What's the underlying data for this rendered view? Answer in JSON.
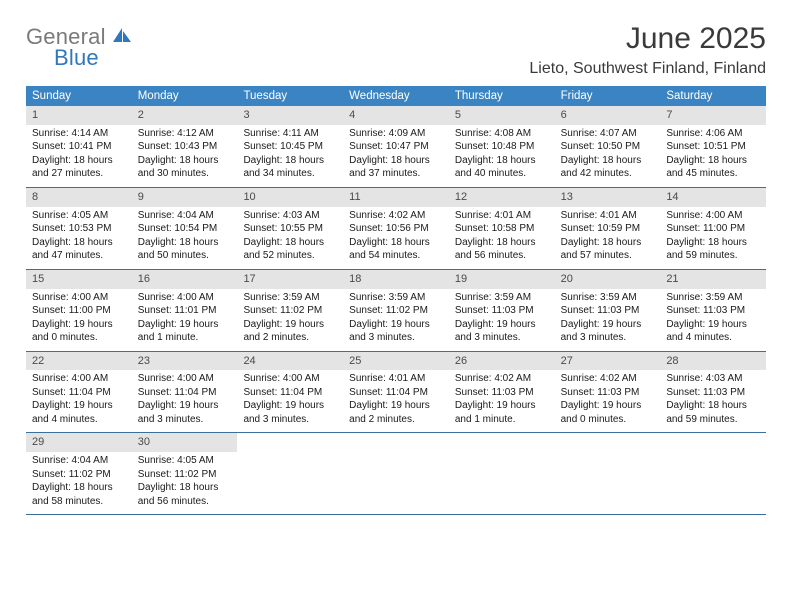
{
  "logo": {
    "text_general": "General",
    "text_blue": "Blue"
  },
  "title": "June 2025",
  "location": "Lieto, Southwest Finland, Finland",
  "colors": {
    "header_bg": "#3b84c4",
    "header_text": "#ffffff",
    "daynum_bg": "#e4e4e4",
    "daynum_text": "#4a4a4a",
    "body_text": "#1a1a1a",
    "rule": "#3b6f9e",
    "logo_gray": "#7a7a7a",
    "logo_blue": "#2f78bd"
  },
  "weekdays": [
    "Sunday",
    "Monday",
    "Tuesday",
    "Wednesday",
    "Thursday",
    "Friday",
    "Saturday"
  ],
  "weeks": [
    [
      {
        "n": "1",
        "sunrise": "Sunrise: 4:14 AM",
        "sunset": "Sunset: 10:41 PM",
        "daylight": "Daylight: 18 hours and 27 minutes."
      },
      {
        "n": "2",
        "sunrise": "Sunrise: 4:12 AM",
        "sunset": "Sunset: 10:43 PM",
        "daylight": "Daylight: 18 hours and 30 minutes."
      },
      {
        "n": "3",
        "sunrise": "Sunrise: 4:11 AM",
        "sunset": "Sunset: 10:45 PM",
        "daylight": "Daylight: 18 hours and 34 minutes."
      },
      {
        "n": "4",
        "sunrise": "Sunrise: 4:09 AM",
        "sunset": "Sunset: 10:47 PM",
        "daylight": "Daylight: 18 hours and 37 minutes."
      },
      {
        "n": "5",
        "sunrise": "Sunrise: 4:08 AM",
        "sunset": "Sunset: 10:48 PM",
        "daylight": "Daylight: 18 hours and 40 minutes."
      },
      {
        "n": "6",
        "sunrise": "Sunrise: 4:07 AM",
        "sunset": "Sunset: 10:50 PM",
        "daylight": "Daylight: 18 hours and 42 minutes."
      },
      {
        "n": "7",
        "sunrise": "Sunrise: 4:06 AM",
        "sunset": "Sunset: 10:51 PM",
        "daylight": "Daylight: 18 hours and 45 minutes."
      }
    ],
    [
      {
        "n": "8",
        "sunrise": "Sunrise: 4:05 AM",
        "sunset": "Sunset: 10:53 PM",
        "daylight": "Daylight: 18 hours and 47 minutes."
      },
      {
        "n": "9",
        "sunrise": "Sunrise: 4:04 AM",
        "sunset": "Sunset: 10:54 PM",
        "daylight": "Daylight: 18 hours and 50 minutes."
      },
      {
        "n": "10",
        "sunrise": "Sunrise: 4:03 AM",
        "sunset": "Sunset: 10:55 PM",
        "daylight": "Daylight: 18 hours and 52 minutes."
      },
      {
        "n": "11",
        "sunrise": "Sunrise: 4:02 AM",
        "sunset": "Sunset: 10:56 PM",
        "daylight": "Daylight: 18 hours and 54 minutes."
      },
      {
        "n": "12",
        "sunrise": "Sunrise: 4:01 AM",
        "sunset": "Sunset: 10:58 PM",
        "daylight": "Daylight: 18 hours and 56 minutes."
      },
      {
        "n": "13",
        "sunrise": "Sunrise: 4:01 AM",
        "sunset": "Sunset: 10:59 PM",
        "daylight": "Daylight: 18 hours and 57 minutes."
      },
      {
        "n": "14",
        "sunrise": "Sunrise: 4:00 AM",
        "sunset": "Sunset: 11:00 PM",
        "daylight": "Daylight: 18 hours and 59 minutes."
      }
    ],
    [
      {
        "n": "15",
        "sunrise": "Sunrise: 4:00 AM",
        "sunset": "Sunset: 11:00 PM",
        "daylight": "Daylight: 19 hours and 0 minutes."
      },
      {
        "n": "16",
        "sunrise": "Sunrise: 4:00 AM",
        "sunset": "Sunset: 11:01 PM",
        "daylight": "Daylight: 19 hours and 1 minute."
      },
      {
        "n": "17",
        "sunrise": "Sunrise: 3:59 AM",
        "sunset": "Sunset: 11:02 PM",
        "daylight": "Daylight: 19 hours and 2 minutes."
      },
      {
        "n": "18",
        "sunrise": "Sunrise: 3:59 AM",
        "sunset": "Sunset: 11:02 PM",
        "daylight": "Daylight: 19 hours and 3 minutes."
      },
      {
        "n": "19",
        "sunrise": "Sunrise: 3:59 AM",
        "sunset": "Sunset: 11:03 PM",
        "daylight": "Daylight: 19 hours and 3 minutes."
      },
      {
        "n": "20",
        "sunrise": "Sunrise: 3:59 AM",
        "sunset": "Sunset: 11:03 PM",
        "daylight": "Daylight: 19 hours and 3 minutes."
      },
      {
        "n": "21",
        "sunrise": "Sunrise: 3:59 AM",
        "sunset": "Sunset: 11:03 PM",
        "daylight": "Daylight: 19 hours and 4 minutes."
      }
    ],
    [
      {
        "n": "22",
        "sunrise": "Sunrise: 4:00 AM",
        "sunset": "Sunset: 11:04 PM",
        "daylight": "Daylight: 19 hours and 4 minutes."
      },
      {
        "n": "23",
        "sunrise": "Sunrise: 4:00 AM",
        "sunset": "Sunset: 11:04 PM",
        "daylight": "Daylight: 19 hours and 3 minutes."
      },
      {
        "n": "24",
        "sunrise": "Sunrise: 4:00 AM",
        "sunset": "Sunset: 11:04 PM",
        "daylight": "Daylight: 19 hours and 3 minutes."
      },
      {
        "n": "25",
        "sunrise": "Sunrise: 4:01 AM",
        "sunset": "Sunset: 11:04 PM",
        "daylight": "Daylight: 19 hours and 2 minutes."
      },
      {
        "n": "26",
        "sunrise": "Sunrise: 4:02 AM",
        "sunset": "Sunset: 11:03 PM",
        "daylight": "Daylight: 19 hours and 1 minute."
      },
      {
        "n": "27",
        "sunrise": "Sunrise: 4:02 AM",
        "sunset": "Sunset: 11:03 PM",
        "daylight": "Daylight: 19 hours and 0 minutes."
      },
      {
        "n": "28",
        "sunrise": "Sunrise: 4:03 AM",
        "sunset": "Sunset: 11:03 PM",
        "daylight": "Daylight: 18 hours and 59 minutes."
      }
    ],
    [
      {
        "n": "29",
        "sunrise": "Sunrise: 4:04 AM",
        "sunset": "Sunset: 11:02 PM",
        "daylight": "Daylight: 18 hours and 58 minutes."
      },
      {
        "n": "30",
        "sunrise": "Sunrise: 4:05 AM",
        "sunset": "Sunset: 11:02 PM",
        "daylight": "Daylight: 18 hours and 56 minutes."
      },
      {
        "empty": true
      },
      {
        "empty": true
      },
      {
        "empty": true
      },
      {
        "empty": true
      },
      {
        "empty": true
      }
    ]
  ]
}
